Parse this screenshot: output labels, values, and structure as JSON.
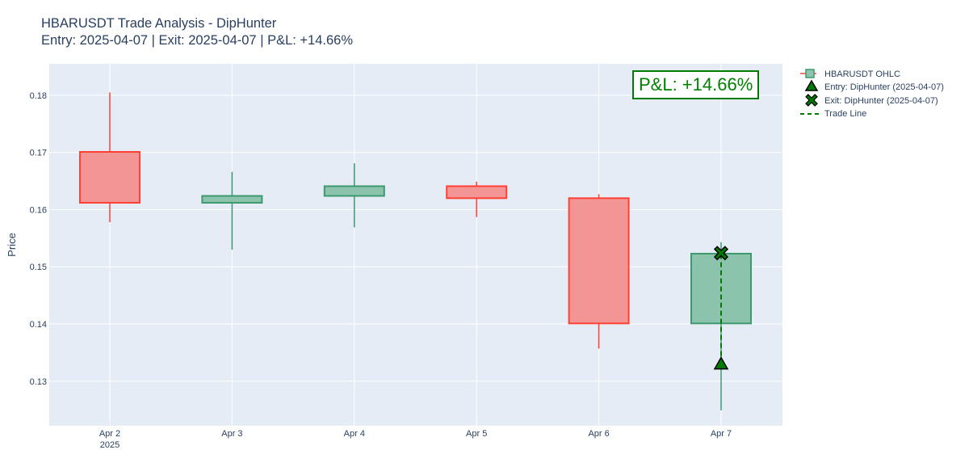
{
  "title": {
    "line1": "HBARUSDT Trade Analysis - DipHunter",
    "line2": "Entry: 2025-04-07 | Exit: 2025-04-07 | P&L: +14.66%"
  },
  "annotation": {
    "text": "P&L: +14.66%",
    "color": "#008000"
  },
  "colors": {
    "increasing": "#3d9970",
    "increasing_fill": "#8cc3ad",
    "decreasing": "#ff4136",
    "decreasing_fill": "#f39595",
    "plot_bg": "#e5ecf6",
    "marker": "#007a00",
    "trade_line": "#007a00"
  },
  "chart_data": {
    "type": "candlestick",
    "ylabel": "Price",
    "ylim": [
      0.1222,
      0.1855
    ],
    "yticks": [
      0.13,
      0.14,
      0.15,
      0.16,
      0.17,
      0.18
    ],
    "ytick_labels": [
      "0.13",
      "0.14",
      "0.15",
      "0.16",
      "0.17",
      "0.18"
    ],
    "xtick_labels": [
      "Apr 2",
      "Apr 3",
      "Apr 4",
      "Apr 5",
      "Apr 6",
      "Apr 7"
    ],
    "xtick_sublabel": "2025",
    "grid": true,
    "legend_position": "top-right outside",
    "series": [
      {
        "name": "HBARUSDT OHLC",
        "candles": [
          {
            "date": "Apr 2",
            "open": 0.1701,
            "high": 0.1805,
            "low": 0.1578,
            "close": 0.1612
          },
          {
            "date": "Apr 3",
            "open": 0.1612,
            "high": 0.1666,
            "low": 0.153,
            "close": 0.1624
          },
          {
            "date": "Apr 4",
            "open": 0.1624,
            "high": 0.1681,
            "low": 0.1569,
            "close": 0.1641
          },
          {
            "date": "Apr 5",
            "open": 0.1641,
            "high": 0.1649,
            "low": 0.1587,
            "close": 0.162
          },
          {
            "date": "Apr 6",
            "open": 0.162,
            "high": 0.1627,
            "low": 0.1357,
            "close": 0.1401
          },
          {
            "date": "Apr 7",
            "open": 0.1401,
            "high": 0.1543,
            "low": 0.1249,
            "close": 0.1523
          }
        ]
      },
      {
        "name": "Entry: DipHunter (2025-04-07)",
        "x": "Apr 7",
        "y": 0.133,
        "marker": "triangle-up"
      },
      {
        "name": "Exit: DipHunter (2025-04-07)",
        "x": "Apr 7",
        "y": 0.1524,
        "marker": "x"
      },
      {
        "name": "Trade Line",
        "x": [
          "Apr 7",
          "Apr 7"
        ],
        "y": [
          0.133,
          0.1524
        ],
        "style": "dashed"
      }
    ]
  }
}
